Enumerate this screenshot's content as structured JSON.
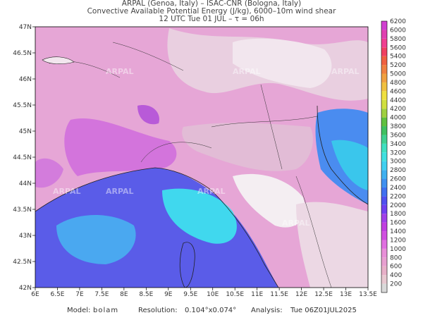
{
  "header": {
    "lines": [
      "ARPAL (Genoa, Italy)  –  ISAC-CNR (Bologna, Italy)",
      "Convective Available Potential Energy (J/kg), 6000–10m wind shear",
      "12 UTC Tue 01 JUL  –  τ = 06h"
    ]
  },
  "map": {
    "watermark": "ARPAL",
    "lon_range": [
      6,
      13.5
    ],
    "lat_range": [
      42,
      47
    ],
    "lon_ticks": [
      {
        "value": 6,
        "label": "6E"
      },
      {
        "value": 6.5,
        "label": "6.5E"
      },
      {
        "value": 7,
        "label": "7E"
      },
      {
        "value": 7.5,
        "label": "7.5E"
      },
      {
        "value": 8,
        "label": "8E"
      },
      {
        "value": 8.5,
        "label": "8.5E"
      },
      {
        "value": 9,
        "label": "9E"
      },
      {
        "value": 9.5,
        "label": "9.5E"
      },
      {
        "value": 10,
        "label": "10E"
      },
      {
        "value": 10.5,
        "label": "10.5E"
      },
      {
        "value": 11,
        "label": "11E"
      },
      {
        "value": 11.5,
        "label": "11.5E"
      },
      {
        "value": 12,
        "label": "12E"
      },
      {
        "value": 12.5,
        "label": "12.5E"
      },
      {
        "value": 13,
        "label": "13E"
      },
      {
        "value": 13.5,
        "label": "13.5E"
      }
    ],
    "lat_ticks": [
      {
        "value": 42,
        "label": "42N"
      },
      {
        "value": 42.5,
        "label": "42.5N"
      },
      {
        "value": 43,
        "label": "43N"
      },
      {
        "value": 43.5,
        "label": "43.5N"
      },
      {
        "value": 44,
        "label": "44N"
      },
      {
        "value": 44.5,
        "label": "44.5N"
      },
      {
        "value": 45,
        "label": "45N"
      },
      {
        "value": 45.5,
        "label": "45.5N"
      },
      {
        "value": 46,
        "label": "46N"
      },
      {
        "value": 46.5,
        "label": "46.5N"
      },
      {
        "value": 47,
        "label": "47N"
      }
    ]
  },
  "colorbar": {
    "levels": [
      200,
      400,
      600,
      800,
      1000,
      1200,
      1400,
      1600,
      1800,
      2000,
      2200,
      2400,
      2600,
      2800,
      3000,
      3200,
      3400,
      3600,
      3800,
      4000,
      4200,
      4400,
      4600,
      4800,
      5000,
      5200,
      5400,
      5600,
      5800,
      6000,
      6200
    ],
    "colors": [
      "#d9d9d9",
      "#e8c8d0",
      "#e8b0c8",
      "#e8a0d0",
      "#e890d8",
      "#e070e0",
      "#d050e0",
      "#c040e0",
      "#a040e8",
      "#7040f0",
      "#5050f0",
      "#4070f0",
      "#4090f0",
      "#40b0f0",
      "#40d0f0",
      "#40e0e0",
      "#40e0c0",
      "#40d090",
      "#40c060",
      "#60c040",
      "#a0d040",
      "#d0e040",
      "#f0e040",
      "#f0c040",
      "#f0a040",
      "#f08040",
      "#f06040",
      "#f04060",
      "#f04090",
      "#e040b0",
      "#d040d0"
    ]
  },
  "footer": {
    "model_label": "Model:",
    "model": "bolam",
    "resolution_label": "Resolution:",
    "resolution": "0.104°x0.074°",
    "analysis_label": "Analysis:",
    "analysis": "Tue 06Z01JUL2025"
  }
}
